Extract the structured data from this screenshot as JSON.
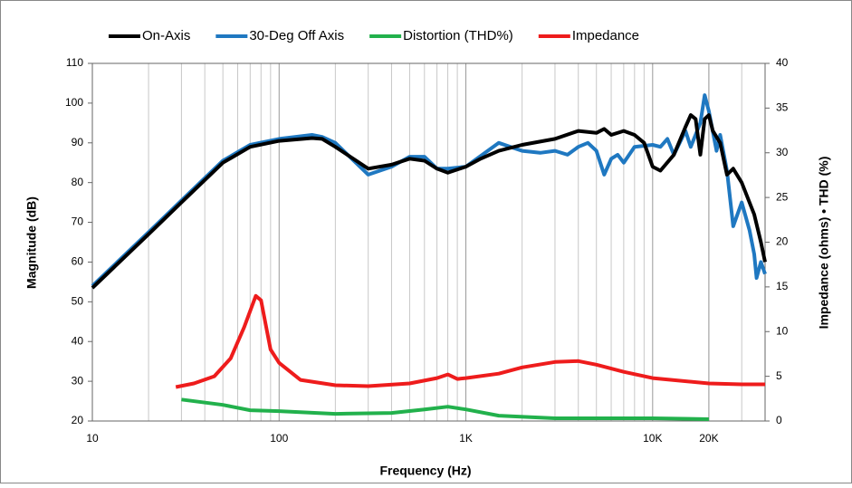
{
  "chart_data": {
    "type": "line",
    "xscale": "log",
    "grid": true,
    "legend": "top",
    "xlabel": "Frequency (Hz)",
    "ylabel": "Magnitude (dB)",
    "y2label": "Impedance (ohms) • THD (%)",
    "xlim": [
      10,
      40000
    ],
    "ylim": [
      20,
      110
    ],
    "y2lim": [
      0,
      40
    ],
    "xticks": [
      10,
      100,
      {
        "value": 1000,
        "label": "1K"
      },
      {
        "value": 10000,
        "label": "10K"
      },
      {
        "value": 20000,
        "label": "20K"
      }
    ],
    "yticks": [
      20,
      30,
      40,
      50,
      60,
      70,
      80,
      90,
      100,
      110
    ],
    "y2ticks": [
      0,
      5,
      10,
      15,
      20,
      25,
      30,
      35,
      40
    ],
    "series": [
      {
        "name": "On-Axis",
        "color": "#000000",
        "axis": "y",
        "x": [
          10,
          20,
          30,
          50,
          70,
          100,
          150,
          170,
          200,
          300,
          400,
          500,
          600,
          700,
          800,
          1000,
          1200,
          1500,
          2000,
          3000,
          4000,
          5000,
          5500,
          6000,
          7000,
          8000,
          9000,
          10000,
          11000,
          13000,
          15000,
          16000,
          17000,
          18000,
          19000,
          20000,
          21000,
          23000,
          25000,
          27000,
          30000,
          35000,
          38000,
          40000
        ],
        "values": [
          53.5,
          67,
          75,
          85,
          89,
          90.5,
          91.2,
          91,
          89,
          83.5,
          84.5,
          86,
          85.5,
          83.5,
          82.5,
          84,
          86,
          88,
          89.5,
          91,
          93,
          92.5,
          93.5,
          92,
          93,
          92,
          90,
          84,
          83,
          87,
          94,
          97,
          96,
          87,
          96,
          97,
          93,
          90,
          82,
          83.5,
          80,
          72,
          65,
          60
        ]
      },
      {
        "name": "30-Deg Off Axis",
        "color": "#1f78c1",
        "axis": "y",
        "x": [
          10,
          20,
          30,
          50,
          70,
          100,
          150,
          170,
          200,
          300,
          400,
          500,
          600,
          700,
          800,
          1000,
          1500,
          2000,
          2500,
          3000,
          3500,
          4000,
          4500,
          5000,
          5500,
          6000,
          6500,
          7000,
          8000,
          10000,
          11000,
          12000,
          13000,
          15000,
          16000,
          18000,
          19000,
          20000,
          22000,
          23000,
          25000,
          27000,
          30000,
          33000,
          35000,
          36000,
          38000,
          40000
        ],
        "values": [
          54,
          67.5,
          75.5,
          85.5,
          89.5,
          91,
          92,
          91.5,
          90,
          82,
          84,
          86.5,
          86.5,
          83.5,
          83.5,
          84,
          90,
          88,
          87.5,
          88,
          87,
          89,
          90,
          88,
          82,
          86,
          87,
          85,
          89,
          89.5,
          89,
          91,
          87,
          93,
          89,
          95,
          102,
          98,
          88,
          92,
          83,
          69,
          75,
          68,
          62,
          56,
          60,
          57
        ]
      },
      {
        "name": "Distortion (THD%)",
        "color": "#22b14c",
        "axis": "y2",
        "x": [
          30,
          50,
          70,
          100,
          200,
          400,
          600,
          800,
          1000,
          1500,
          3000,
          10000,
          20000
        ],
        "values": [
          2.4,
          1.8,
          1.2,
          1.1,
          0.8,
          0.9,
          1.3,
          1.6,
          1.3,
          0.6,
          0.3,
          0.3,
          0.2
        ]
      },
      {
        "name": "Impedance",
        "color": "#ee1c1c",
        "axis": "y2",
        "x": [
          28,
          35,
          45,
          55,
          65,
          75,
          80,
          90,
          100,
          130,
          200,
          300,
          500,
          700,
          800,
          900,
          1000,
          1500,
          2000,
          3000,
          4000,
          5000,
          7000,
          10000,
          20000,
          30000,
          40000
        ],
        "values": [
          3.8,
          4.2,
          5,
          7,
          10.5,
          14,
          13.5,
          8,
          6.5,
          4.6,
          4,
          3.9,
          4.2,
          4.8,
          5.2,
          4.7,
          4.8,
          5.3,
          6,
          6.6,
          6.7,
          6.3,
          5.5,
          4.8,
          4.2,
          4.1,
          4.1
        ]
      }
    ]
  }
}
